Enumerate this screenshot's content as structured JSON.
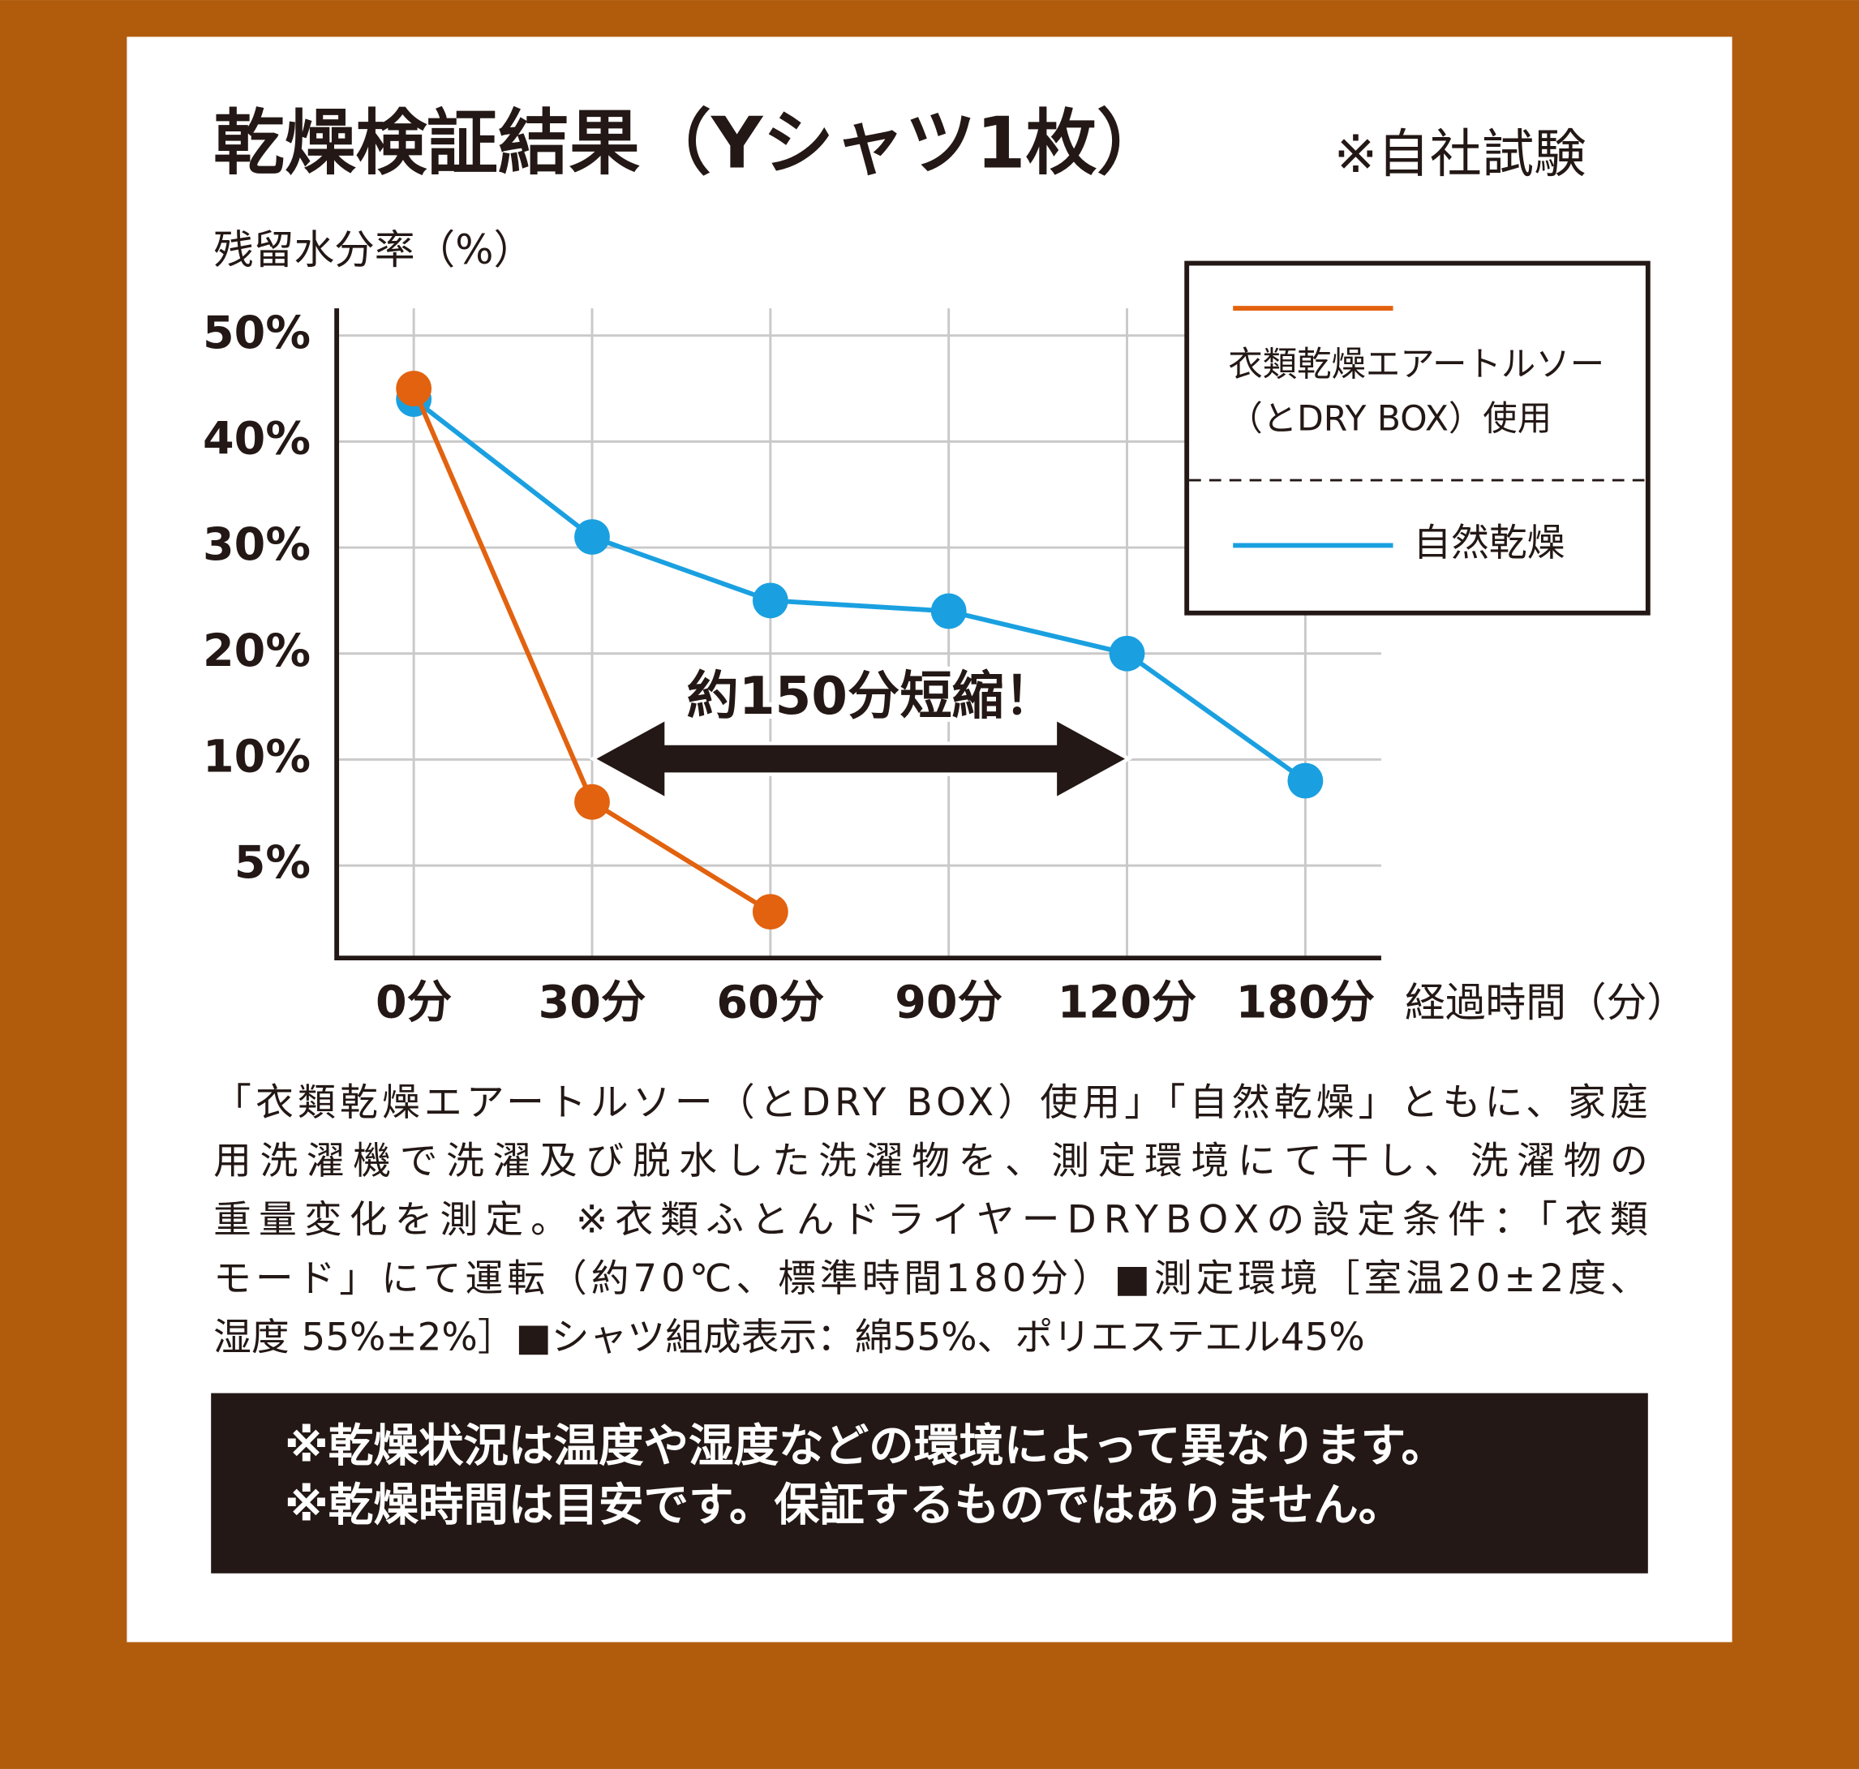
{
  "chart_data": {
    "type": "line",
    "title": "乾燥検証結果（Yシャツ1枚）",
    "subtitle": "※自社試験",
    "ylabel": "残留水分率（%）",
    "xlabel": "経過時間（分）",
    "annotation": "約150分短縮！",
    "categories": [
      "0分",
      "30分",
      "60分",
      "90分",
      "120分",
      "180分"
    ],
    "ylim": [
      0,
      50
    ],
    "yticks": [
      {
        "value": 5,
        "label": "5%"
      },
      {
        "value": 10,
        "label": "10%"
      },
      {
        "value": 20,
        "label": "20%"
      },
      {
        "value": 30,
        "label": "30%"
      },
      {
        "value": 40,
        "label": "40%"
      },
      {
        "value": 50,
        "label": "50%"
      }
    ],
    "grid": true,
    "series": [
      {
        "name": "衣類乾燥エアートルソー\n（とDRY BOX）使用",
        "color": "#e2620f",
        "values": [
          45,
          8,
          2.5,
          null,
          null,
          null
        ]
      },
      {
        "name": "自然乾燥",
        "color": "#1aa0e0",
        "values": [
          44,
          31,
          25,
          24,
          20,
          9
        ]
      }
    ]
  },
  "description": [
    "「衣類乾燥エアートルソー（とDRY BOX）使用」「自然乾燥」ともに、家庭",
    "用洗濯機で洗濯及び脱水した洗濯物を、測定環境にて干し、洗濯物の",
    "重量変化を測定。※衣類ふとんドライヤーDRYBOXの設定条件：「衣類",
    "モード」にて運転（約70℃、標準時間180分）■測定環境［室温20±2度、",
    "湿度 55%±2%］■シャツ組成表示：綿55%、ポリエステエル45%"
  ],
  "notice": [
    "※乾燥状況は温度や湿度などの環境によって異なります。",
    "※乾燥時間は目安です。保証するものではありません。"
  ]
}
